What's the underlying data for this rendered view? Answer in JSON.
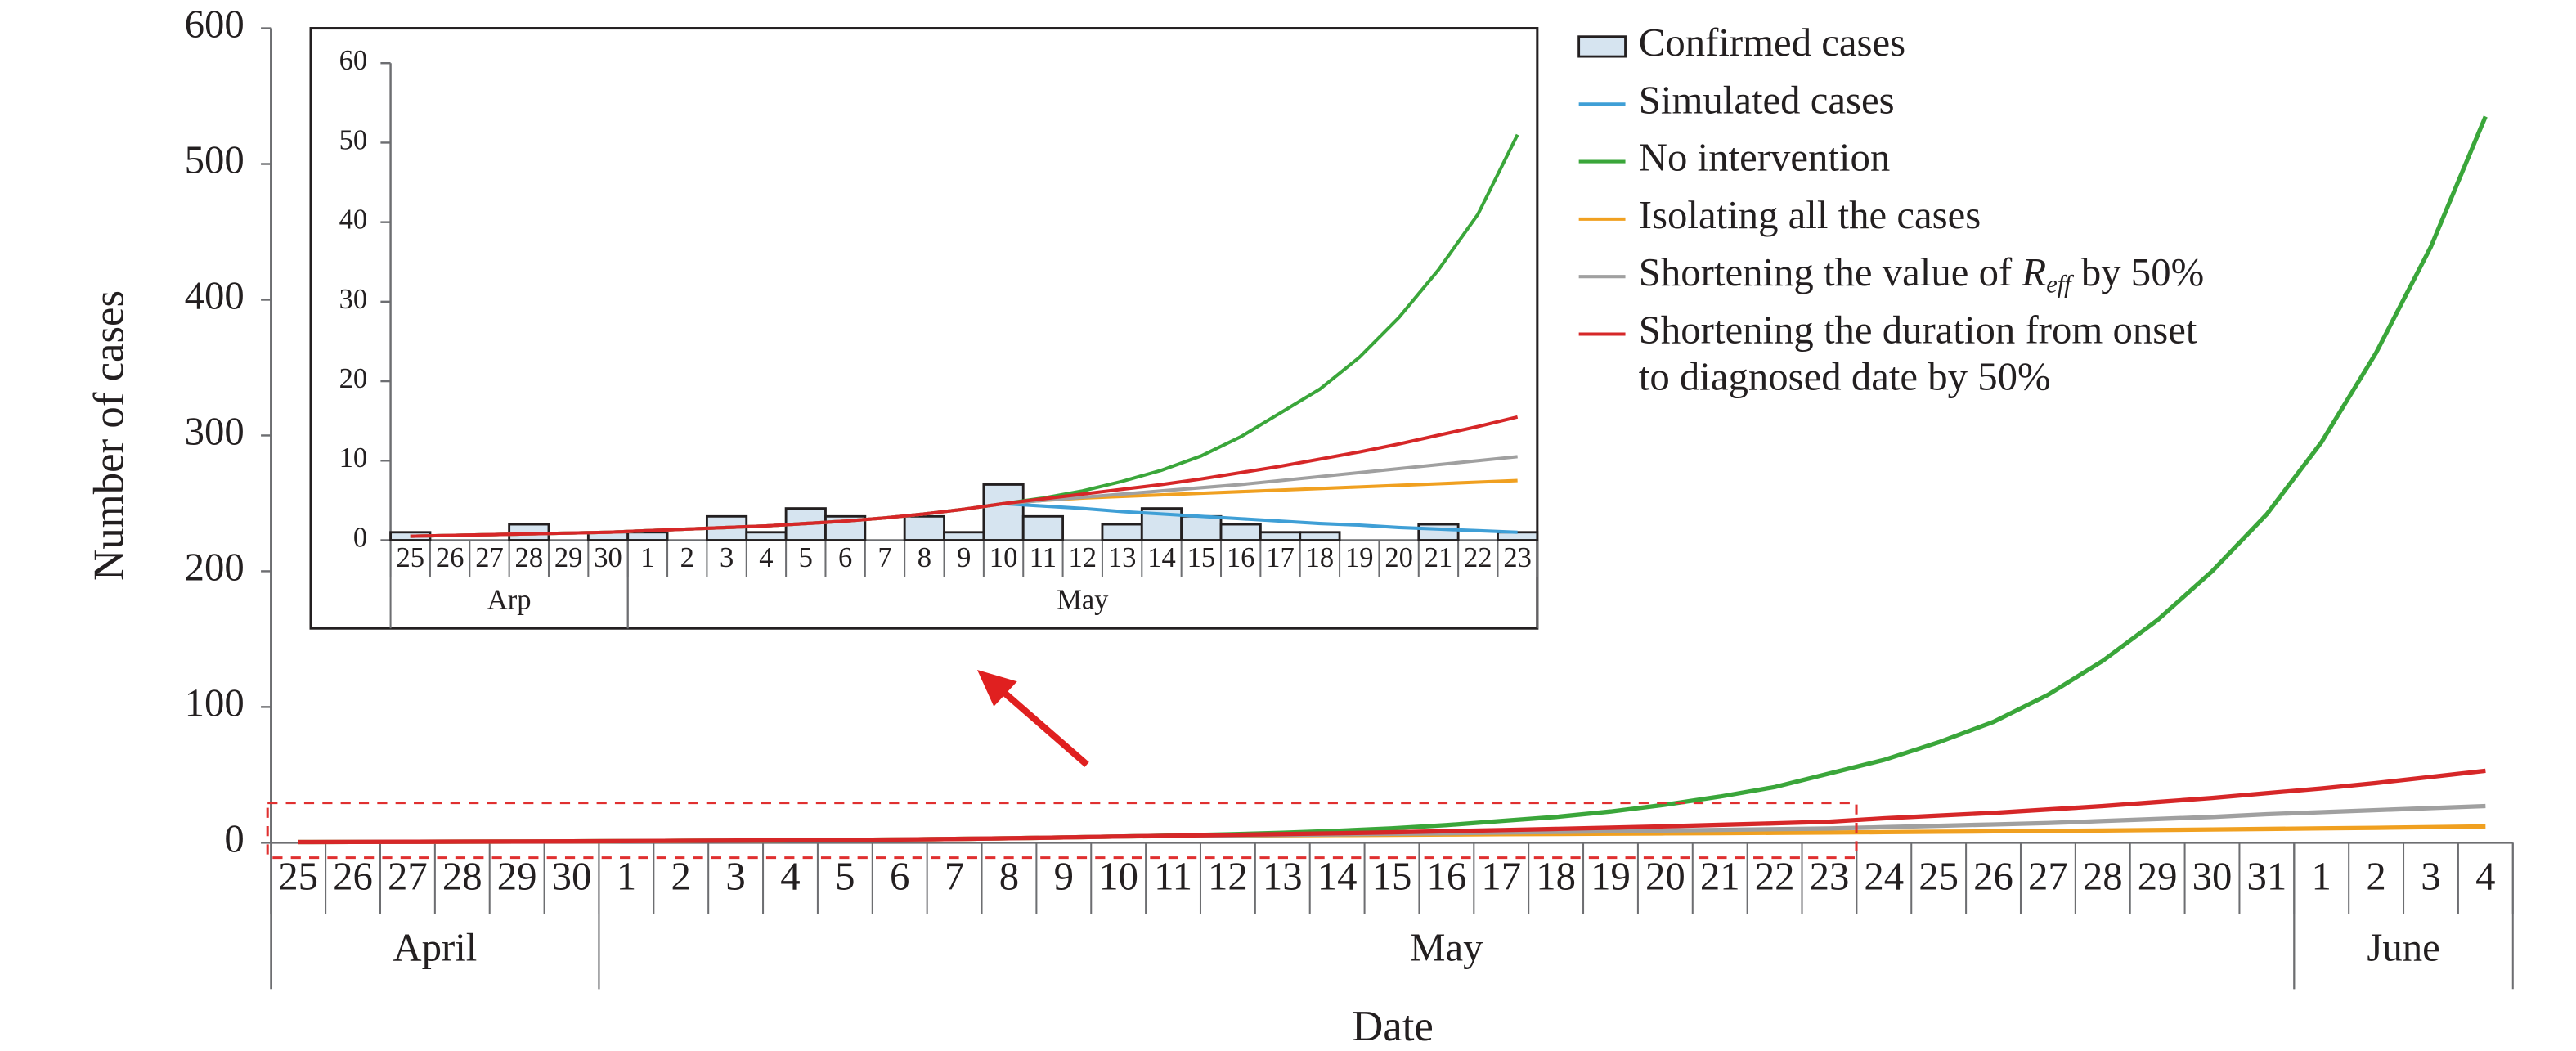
{
  "chart_data": [
    {
      "type": "line",
      "y_label": "Number of cases",
      "x_label": "Date",
      "categories": [
        "25",
        "26",
        "27",
        "28",
        "29",
        "30",
        "1",
        "2",
        "3",
        "4",
        "5",
        "6",
        "7",
        "8",
        "9",
        "10",
        "11",
        "12",
        "13",
        "14",
        "15",
        "16",
        "17",
        "18",
        "19",
        "20",
        "21",
        "22",
        "23",
        "24",
        "25",
        "26",
        "27",
        "28",
        "29",
        "30",
        "31",
        "1",
        "2",
        "3",
        "4"
      ],
      "groups": [
        {
          "label": "April",
          "start": 0,
          "end": 5
        },
        {
          "label": "May",
          "start": 6,
          "end": 36
        },
        {
          "label": "June",
          "start": 37,
          "end": 40
        }
      ],
      "ylim": [
        0,
        600
      ],
      "yticks": [
        0,
        100,
        200,
        300,
        400,
        500,
        600
      ],
      "series": [
        {
          "color": "#3aa63a",
          "values": [
            0.5,
            0.6,
            0.7,
            0.8,
            0.9,
            1.0,
            1.2,
            1.4,
            1.6,
            1.8,
            2.1,
            2.4,
            2.8,
            3.3,
            3.9,
            4.6,
            5.3,
            6.2,
            7.4,
            8.8,
            10.6,
            13,
            16,
            19,
            23,
            28,
            34,
            41,
            51,
            61,
            74,
            89,
            109,
            134,
            164,
            200,
            242,
            295,
            361,
            439,
            535
          ]
        },
        {
          "color": "#f0a020",
          "values": [
            0.5,
            0.6,
            0.7,
            0.8,
            0.9,
            1.0,
            1.2,
            1.4,
            1.6,
            1.8,
            2.1,
            2.4,
            2.8,
            3.3,
            3.9,
            4.6,
            5.0,
            5.3,
            5.5,
            5.7,
            5.9,
            6.1,
            6.3,
            6.5,
            6.7,
            6.9,
            7.1,
            7.3,
            7.5,
            7.8,
            8.1,
            8.4,
            8.7,
            9.0,
            9.4,
            9.8,
            10.2,
            10.6,
            11.0,
            11.5,
            12
          ]
        },
        {
          "color": "#a0a0a0",
          "values": [
            0.5,
            0.6,
            0.7,
            0.8,
            0.9,
            1.0,
            1.2,
            1.4,
            1.6,
            1.8,
            2.1,
            2.4,
            2.8,
            3.3,
            3.9,
            4.6,
            5.0,
            5.4,
            5.8,
            6.2,
            6.6,
            7.0,
            7.5,
            8.0,
            8.5,
            9.0,
            9.5,
            10.0,
            10.5,
            11.5,
            12.5,
            13.5,
            14.5,
            16,
            17.5,
            19,
            21,
            22.5,
            24,
            25.5,
            27
          ]
        },
        {
          "color": "#d62728",
          "values": [
            0.5,
            0.6,
            0.7,
            0.8,
            0.9,
            1.0,
            1.2,
            1.4,
            1.6,
            1.8,
            2.1,
            2.4,
            2.8,
            3.3,
            3.9,
            4.6,
            5.2,
            5.8,
            6.4,
            7.0,
            7.7,
            8.5,
            9.3,
            10.2,
            11.1,
            12.1,
            13.2,
            14.3,
            15.5,
            18,
            20,
            22,
            24.5,
            27,
            30,
            33,
            36.5,
            40,
            44,
            48.5,
            53
          ]
        }
      ]
    },
    {
      "type": "combo",
      "categories": [
        "25",
        "26",
        "27",
        "28",
        "29",
        "30",
        "1",
        "2",
        "3",
        "4",
        "5",
        "6",
        "7",
        "8",
        "9",
        "10",
        "11",
        "12",
        "13",
        "14",
        "15",
        "16",
        "17",
        "18",
        "19",
        "20",
        "21",
        "22",
        "23"
      ],
      "groups": [
        {
          "label": "Arp",
          "start": 0,
          "end": 5
        },
        {
          "label": "May",
          "start": 6,
          "end": 28
        }
      ],
      "ylim": [
        0,
        60
      ],
      "yticks": [
        0,
        10,
        20,
        30,
        40,
        50,
        60
      ],
      "series": [
        {
          "name": "Confirmed cases",
          "type": "bar",
          "color": "#d6e4f0",
          "values": [
            1,
            0,
            0,
            2,
            0,
            1,
            1,
            0,
            3,
            1,
            4,
            3,
            0,
            3,
            1,
            7,
            3,
            0,
            2,
            4,
            3,
            2,
            1,
            1,
            0,
            0,
            2,
            0,
            1
          ]
        },
        {
          "name": "Simulated cases",
          "type": "line",
          "color": "#3f9fd6",
          "values": [
            0.5,
            0.6,
            0.7,
            0.8,
            0.9,
            1.0,
            1.2,
            1.4,
            1.6,
            1.8,
            2.1,
            2.4,
            2.8,
            3.3,
            3.9,
            4.6,
            4.3,
            4.0,
            3.6,
            3.3,
            3.0,
            2.7,
            2.4,
            2.1,
            1.9,
            1.6,
            1.4,
            1.2,
            1.0
          ]
        },
        {
          "name": "No intervention",
          "type": "line",
          "color": "#3aa63a",
          "values": [
            0.5,
            0.6,
            0.7,
            0.8,
            0.9,
            1.0,
            1.2,
            1.4,
            1.6,
            1.8,
            2.1,
            2.4,
            2.8,
            3.3,
            3.9,
            4.6,
            5.3,
            6.2,
            7.4,
            8.8,
            10.6,
            13,
            16,
            19,
            23,
            28,
            34,
            41,
            51
          ]
        },
        {
          "name": "Isolating all the cases",
          "type": "line",
          "color": "#f0a020",
          "values": [
            0.5,
            0.6,
            0.7,
            0.8,
            0.9,
            1.0,
            1.2,
            1.4,
            1.6,
            1.8,
            2.1,
            2.4,
            2.8,
            3.3,
            3.9,
            4.6,
            5.0,
            5.3,
            5.5,
            5.7,
            5.9,
            6.1,
            6.3,
            6.5,
            6.7,
            6.9,
            7.1,
            7.3,
            7.5
          ]
        },
        {
          "name": [
            {
              "text": "Shortening the value of "
            },
            {
              "text": "R",
              "italic": true
            },
            {
              "text": "eff",
              "italic": true,
              "sub": true
            },
            {
              "text": "  by 50%"
            }
          ],
          "type": "line",
          "color": "#a0a0a0",
          "values": [
            0.5,
            0.6,
            0.7,
            0.8,
            0.9,
            1.0,
            1.2,
            1.4,
            1.6,
            1.8,
            2.1,
            2.4,
            2.8,
            3.3,
            3.9,
            4.6,
            5.0,
            5.4,
            5.8,
            6.2,
            6.6,
            7.0,
            7.5,
            8.0,
            8.5,
            9.0,
            9.5,
            10.0,
            10.5
          ]
        },
        {
          "name": [
            {
              "text": "Shortening the duration from onset"
            },
            {
              "text": "to diagnosed date by 50%",
              "newline": true
            }
          ],
          "type": "line",
          "color": "#d62728",
          "values": [
            0.5,
            0.6,
            0.7,
            0.8,
            0.9,
            1.0,
            1.2,
            1.4,
            1.6,
            1.8,
            2.1,
            2.4,
            2.8,
            3.3,
            3.9,
            4.6,
            5.2,
            5.8,
            6.4,
            7.0,
            7.7,
            8.5,
            9.3,
            10.2,
            11.1,
            12.1,
            13.2,
            14.3,
            15.5
          ]
        }
      ]
    }
  ]
}
